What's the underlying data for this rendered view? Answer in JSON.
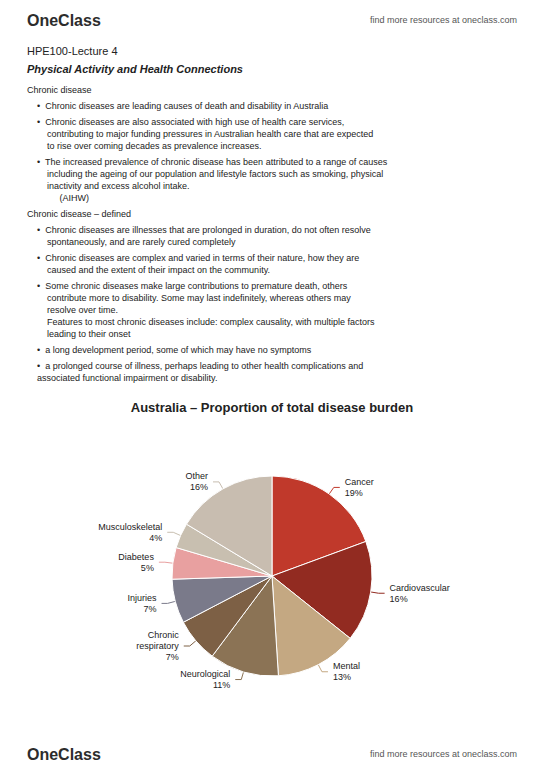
{
  "chart_data": {
    "type": "pie",
    "title": "Australia – Proportion of total disease burden",
    "categories": [
      "Cancer",
      "Cardiovascular",
      "Mental",
      "Neurological",
      "Chronic\nrespiratory",
      "Injuries",
      "Diabetes",
      "Musculoskeletal",
      "Other"
    ],
    "values": [
      19,
      16,
      13,
      11,
      7,
      7,
      5,
      4,
      16
    ],
    "value_labels": [
      "19%",
      "16%",
      "13%",
      "11%",
      "7%",
      "7%",
      "5%",
      "4%",
      "16%"
    ],
    "colors": [
      "#c0392b",
      "#922b21",
      "#c4a882",
      "#8b7355",
      "#7d6045",
      "#7a7a8a",
      "#e8a0a0",
      "#c8bfb0",
      "#c8bdb0"
    ],
    "data_labels": true,
    "annotations": [
      "OneClass",
      "find more resources at oneclass.com",
      "HPE100-Lecture 4",
      "Physical Activity and Health Connections",
      "Chronic disease",
      "•  Chronic diseases are leading causes of death and disability in Australia",
      "•  Chronic diseases are also associated with high use of health care services,\n    contributing to major funding pressures in Australian health care that are expected\n    to rise over coming decades as prevalence increases.",
      "•  The increased prevalence of chronic disease has been attributed to a range of causes\n    including the ageing of our population and lifestyle factors such as smoking, physical\n    inactivity and excess alcohol intake.\n         (AIHW)",
      "Chronic disease – defined",
      "•  Chronic diseases are illnesses that are prolonged in duration, do not often resolve\n    spontaneously, and are rarely cured completely",
      "•  Chronic diseases are complex and varied in terms of their nature, how they are\n    caused and the extent of their impact on the community.",
      "•  Some chronic diseases make large contributions to premature death, others\n    contribute more to disability. Some may last indefinitely, whereas others may\n    resolve over time.\n    Features to most chronic diseases include: complex causality, with multiple factors\n    leading to their onset",
      "•  a long development period, some of which may have no symptoms",
      "•  a prolonged course of illness, perhaps leading to other health complications and\nassociated functional impairment or disability.",
      "OneClass",
      "find more resources at oneclass.com"
    ]
  }
}
